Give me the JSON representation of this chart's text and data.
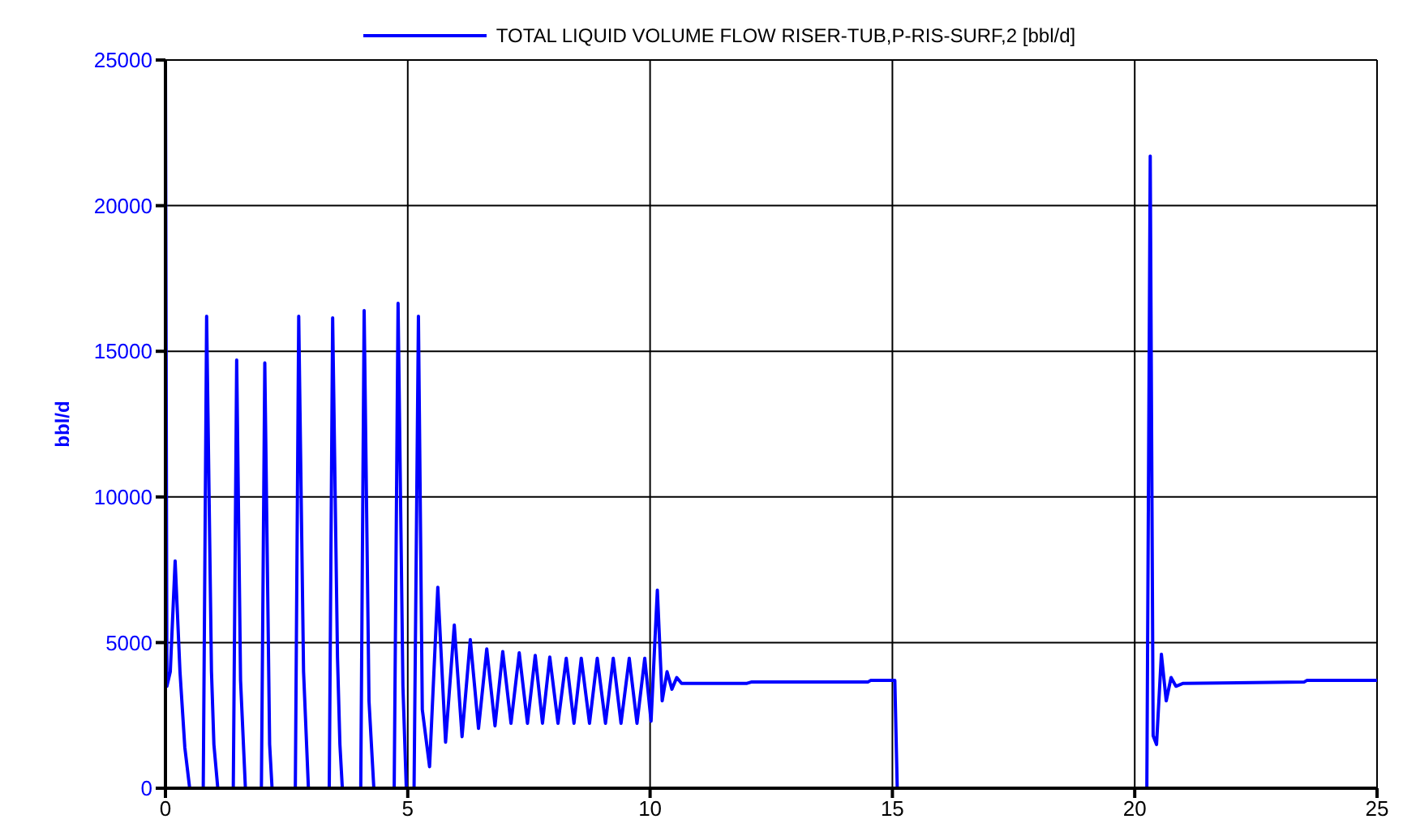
{
  "chart_data": {
    "type": "line",
    "ylabel": "bbl/d",
    "legend": "top",
    "grid": true,
    "marker": "none",
    "line_style": "solid",
    "xlim": [
      0,
      25
    ],
    "xticks": [
      0,
      5,
      10,
      15,
      20,
      25
    ],
    "ylim": [
      0,
      25000
    ],
    "yticks": [
      0,
      5000,
      10000,
      15000,
      20000,
      25000
    ],
    "series": [
      {
        "name": "TOTAL LIQUID VOLUME FLOW RISER-TUB,P-RIS-SURF,2 [bbl/d]",
        "color": "#0000ff",
        "x": [
          0,
          0.03,
          0.1,
          0.2,
          0.3,
          0.4,
          0.5,
          0.78,
          0.85,
          0.95,
          1.0,
          1.08,
          1.4,
          1.47,
          1.55,
          1.65,
          1.98,
          2.05,
          2.15,
          2.2,
          2.68,
          2.75,
          2.85,
          2.95,
          3.38,
          3.45,
          3.55,
          3.6,
          3.65,
          4.03,
          4.1,
          4.2,
          4.3,
          4.72,
          4.8,
          4.9,
          4.97,
          5.13,
          5.22,
          5.3,
          5.45,
          5.62,
          5.78,
          5.96,
          6.12,
          6.29,
          6.46,
          6.63,
          6.8,
          6.96,
          7.13,
          7.3,
          7.47,
          7.63,
          7.78,
          7.93,
          8.1,
          8.27,
          8.43,
          8.58,
          8.75,
          8.91,
          9.08,
          9.24,
          9.4,
          9.57,
          9.73,
          9.89,
          10.02,
          10.15,
          10.25,
          10.35,
          10.45,
          10.55,
          10.65,
          12,
          12.1,
          14.5,
          14.55,
          15.05,
          15.1,
          20.25,
          20.32,
          20.38,
          20.45,
          20.55,
          20.65,
          20.75,
          20.85,
          21,
          23.5,
          23.55,
          25
        ],
        "values": [
          25000,
          3500,
          4000,
          7800,
          4000,
          1400,
          0,
          0,
          16200,
          4000,
          1500,
          0,
          0,
          14700,
          3700,
          0,
          0,
          14600,
          1500,
          0,
          0,
          16200,
          4000,
          0,
          0,
          16150,
          4500,
          1500,
          0,
          0,
          16400,
          3000,
          0,
          0,
          16650,
          3500,
          0,
          0,
          16200,
          2700,
          740,
          6900,
          1580,
          5600,
          1770,
          5100,
          2050,
          4780,
          2140,
          4690,
          2230,
          4650,
          2230,
          4560,
          2230,
          4500,
          2230,
          4460,
          2230,
          4460,
          2230,
          4460,
          2230,
          4460,
          2230,
          4460,
          2230,
          4460,
          2300,
          6800,
          3000,
          4000,
          3400,
          3800,
          3600,
          3600,
          3650,
          3650,
          3700,
          3700,
          0,
          0,
          21700,
          1800,
          1500,
          4600,
          3000,
          3800,
          3500,
          3600,
          3650,
          3700,
          3700
        ]
      }
    ]
  }
}
